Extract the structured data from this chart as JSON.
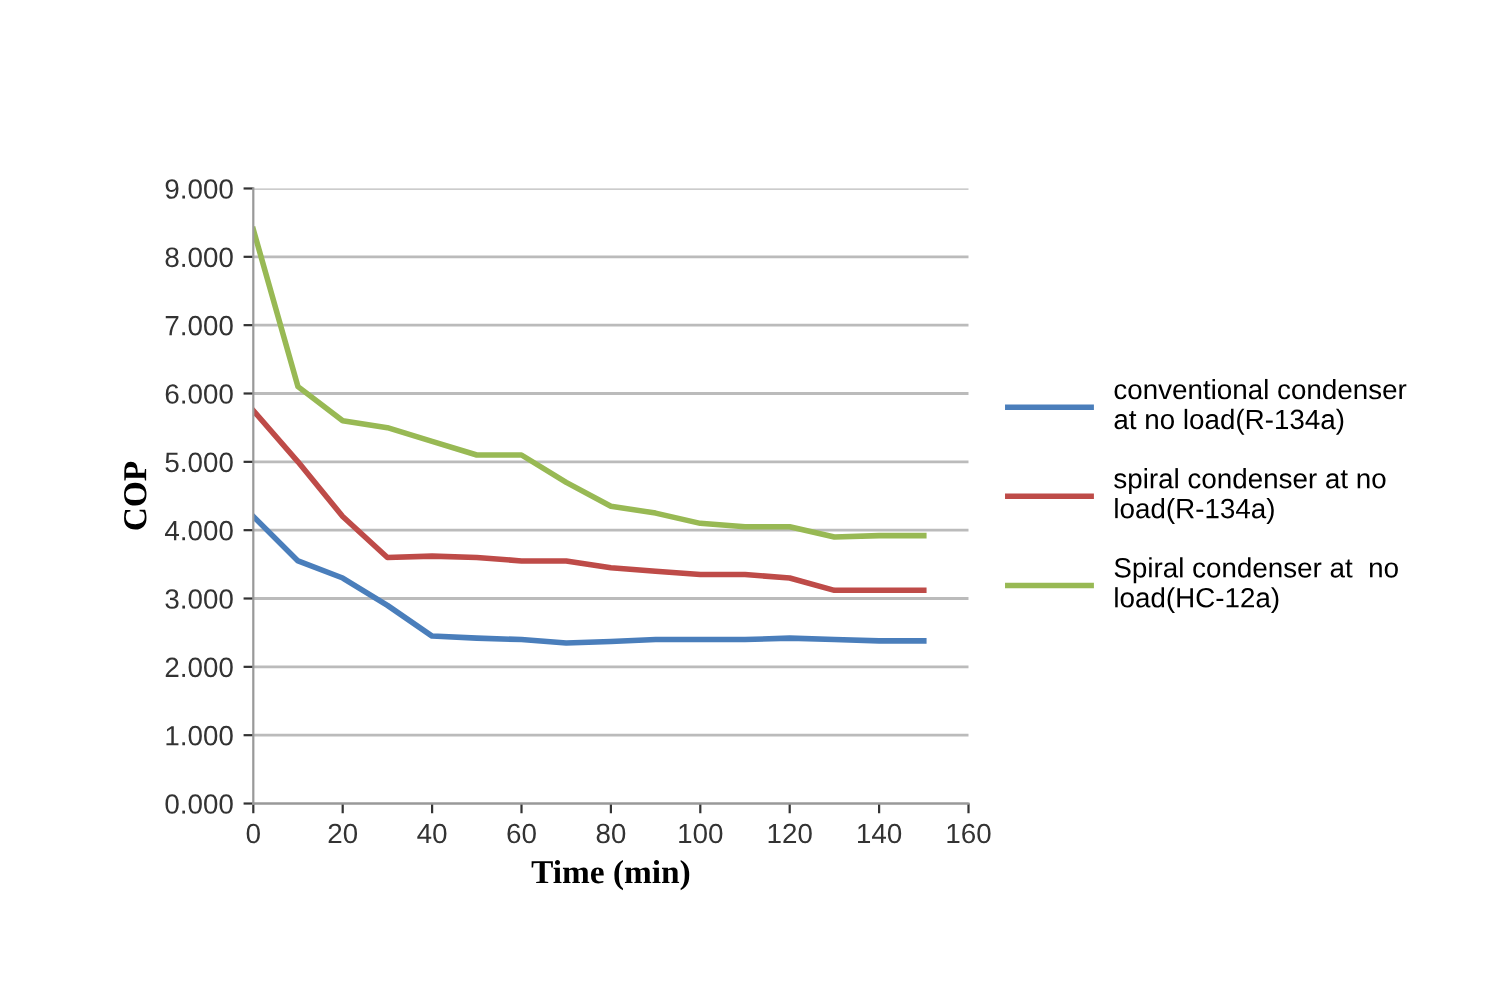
{
  "chart_data": {
    "type": "line",
    "xlabel": "Time (min)",
    "ylabel": "COP",
    "x": [
      0,
      10,
      20,
      30,
      40,
      50,
      60,
      70,
      80,
      90,
      100,
      110,
      120,
      130,
      140,
      150
    ],
    "series": [
      {
        "name": "conventional condenser\nat no load(R-134a)",
        "color": "#4a7ebb",
        "values": [
          4.2,
          3.55,
          3.3,
          2.9,
          2.45,
          2.42,
          2.4,
          2.35,
          2.37,
          2.4,
          2.4,
          2.4,
          2.42,
          2.4,
          2.38,
          2.38
        ]
      },
      {
        "name": "spiral condenser at no\nload(R-134a)",
        "color": "#be4b48",
        "values": [
          5.75,
          5.0,
          4.2,
          3.6,
          3.62,
          3.6,
          3.55,
          3.55,
          3.45,
          3.4,
          3.35,
          3.35,
          3.3,
          3.12,
          3.12,
          3.12
        ]
      },
      {
        "name": "Spiral condenser at  no\nload(HC-12a)",
        "color": "#98b954",
        "values": [
          8.4,
          6.1,
          5.6,
          5.5,
          5.3,
          5.1,
          5.1,
          4.7,
          4.35,
          4.25,
          4.1,
          4.05,
          4.05,
          3.9,
          3.92,
          3.92
        ]
      }
    ],
    "xlim": [
      0,
      160
    ],
    "xticks": [
      0,
      20,
      40,
      60,
      80,
      100,
      120,
      140,
      160
    ],
    "ylim": [
      0,
      9
    ],
    "yticks": [
      {
        "value": 0,
        "label": "0.000"
      },
      {
        "value": 1,
        "label": "1.000"
      },
      {
        "value": 2,
        "label": "2.000"
      },
      {
        "value": 3,
        "label": "3.000"
      },
      {
        "value": 4,
        "label": "4.000"
      },
      {
        "value": 5,
        "label": "5.000"
      },
      {
        "value": 6,
        "label": "6.000"
      },
      {
        "value": 7,
        "label": "7.000"
      },
      {
        "value": 8,
        "label": "8.000"
      },
      {
        "value": 9,
        "label": "9.000"
      }
    ],
    "grid": "y",
    "legend": "right",
    "marker": "none",
    "line_style": "solid"
  }
}
